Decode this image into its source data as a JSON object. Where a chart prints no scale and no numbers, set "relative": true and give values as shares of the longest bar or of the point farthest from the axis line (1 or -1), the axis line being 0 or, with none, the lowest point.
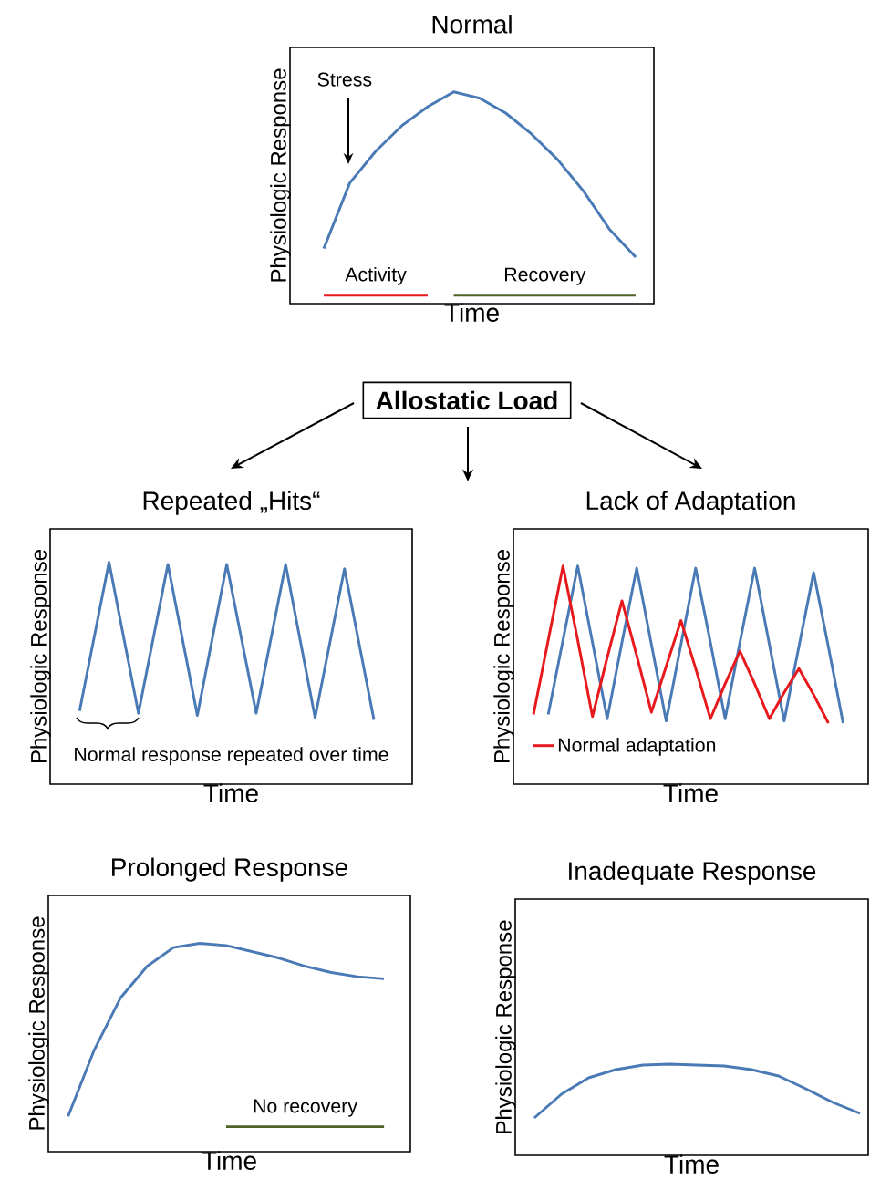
{
  "chart_data": [
    {
      "type": "line",
      "title": "Normal",
      "xlabel": "Time",
      "ylabel": "Physiologic Response",
      "relative": true,
      "categories": [
        null,
        null,
        null,
        null,
        null,
        null,
        null,
        null,
        null,
        null,
        null,
        null,
        null
      ],
      "series": [
        {
          "color": "#4a7ab5",
          "values": [
            0.26,
            0.57,
            0.72,
            0.84,
            0.93,
            1.0,
            0.97,
            0.9,
            0.8,
            0.68,
            0.53,
            0.35,
            0.22
          ]
        },
        {
          "name": "Activity",
          "color": "#e8191c",
          "values": [
            0.04,
            0.04,
            0.04,
            0.04,
            0.04,
            null,
            null,
            null,
            null,
            null,
            null,
            null,
            null
          ]
        },
        {
          "name": "Recovery",
          "color": "#4f6228",
          "values": [
            null,
            null,
            null,
            null,
            null,
            0.04,
            0.04,
            0.04,
            0.04,
            0.04,
            0.04,
            0.04,
            0.04
          ]
        }
      ],
      "annotations": [
        "Stress"
      ]
    },
    {
      "type": "other",
      "title": "Allostatic Load"
    },
    {
      "type": "line",
      "title": "Repeated „Hits“",
      "xlabel": "Time",
      "ylabel": "Physiologic Response",
      "relative": true,
      "categories": [
        null,
        null,
        null,
        null,
        null,
        null,
        null,
        null,
        null,
        null,
        null
      ],
      "series": [
        {
          "color": "#4a7ab5",
          "values": [
            0.33,
            1.0,
            0.32,
            0.99,
            0.31,
            0.99,
            0.32,
            0.99,
            0.3,
            0.97,
            0.29
          ]
        }
      ],
      "annotations": [
        "Normal response repeated over time"
      ]
    },
    {
      "type": "line",
      "title": "Lack of Adaptation",
      "xlabel": "Time",
      "ylabel": "Physiologic Response",
      "relative": true,
      "legend": "bottom left",
      "categories": [
        null,
        null,
        null,
        null,
        null,
        null,
        null,
        null,
        null,
        null,
        null,
        null,
        null,
        null,
        null,
        null,
        null,
        null,
        null,
        null,
        null,
        null
      ],
      "series": [
        {
          "color": "#4a7ab5",
          "values": [
            null,
            0.32,
            0.66,
            1.0,
            0.65,
            0.3,
            0.65,
            0.99,
            0.64,
            0.29,
            0.64,
            0.99,
            0.65,
            0.3,
            0.65,
            0.99,
            0.64,
            0.29,
            0.63,
            0.97,
            0.63,
            0.28
          ]
        },
        {
          "name": "Normal adaptation",
          "color": "#e8191c",
          "values": [
            0.32,
            0.66,
            1.0,
            0.66,
            0.31,
            0.58,
            0.84,
            0.59,
            0.33,
            0.54,
            0.75,
            0.53,
            0.3,
            0.46,
            0.61,
            0.46,
            0.3,
            0.42,
            0.53,
            0.41,
            0.28,
            null
          ]
        }
      ]
    },
    {
      "type": "line",
      "title": "Prolonged Response",
      "xlabel": "Time",
      "ylabel": "Physiologic Response",
      "relative": true,
      "categories": [
        null,
        null,
        null,
        null,
        null,
        null,
        null,
        null,
        null,
        null,
        null,
        null,
        null
      ],
      "series": [
        {
          "color": "#4a7ab5",
          "values": [
            0.17,
            0.49,
            0.74,
            0.89,
            0.98,
            1.0,
            0.99,
            0.96,
            0.93,
            0.89,
            0.86,
            0.84,
            0.83
          ]
        },
        {
          "name": "No recovery",
          "color": "#4f6228",
          "values": [
            null,
            null,
            null,
            null,
            null,
            null,
            0.12,
            0.12,
            0.12,
            0.12,
            0.12,
            0.12,
            0.12
          ]
        }
      ]
    },
    {
      "type": "line",
      "title": "Inadequate Response",
      "xlabel": "Time",
      "ylabel": "Physiologic Response",
      "relative": true,
      "categories": [
        null,
        null,
        null,
        null,
        null,
        null,
        null,
        null,
        null,
        null,
        null,
        null,
        null
      ],
      "series": [
        {
          "color": "#4a7ab5",
          "values": [
            0.41,
            0.67,
            0.85,
            0.94,
            0.99,
            1.0,
            0.99,
            0.98,
            0.94,
            0.87,
            0.73,
            0.58,
            0.46
          ]
        }
      ]
    }
  ]
}
